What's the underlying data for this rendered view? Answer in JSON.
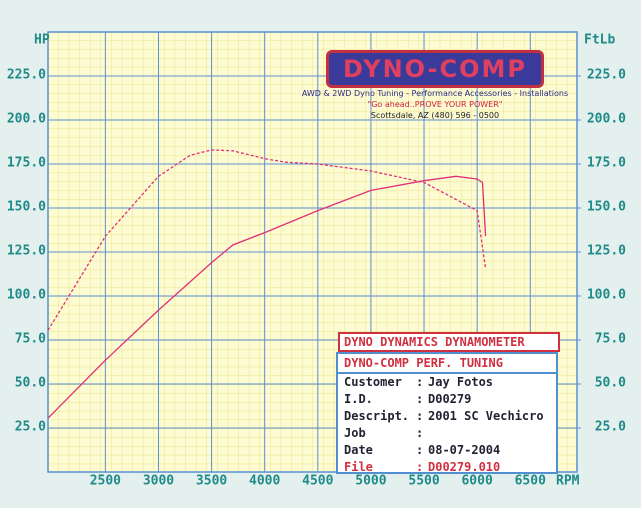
{
  "chart_data": {
    "type": "line",
    "y_label": "HP",
    "y2_label": "FtLb",
    "x_label": "RPM",
    "xlim": [
      1960,
      6940
    ],
    "xticks": [
      2500,
      3000,
      3500,
      4000,
      4500,
      5000,
      5500,
      6000,
      6500
    ],
    "ylim": [
      0,
      250
    ],
    "yticks": [
      {
        "value": 25,
        "label": "25.0"
      },
      {
        "value": 50,
        "label": "50.0"
      },
      {
        "value": 75,
        "label": "75.0"
      },
      {
        "value": 100,
        "label": "100.0"
      },
      {
        "value": 125,
        "label": "125.0"
      },
      {
        "value": 150,
        "label": "150.0"
      },
      {
        "value": 175,
        "label": "175.0"
      },
      {
        "value": 200,
        "label": "200.0"
      },
      {
        "value": 225,
        "label": "225.0"
      }
    ],
    "y2lim": [
      0,
      250
    ],
    "y2ticks": [
      {
        "value": 25,
        "label": "25.0"
      },
      {
        "value": 50,
        "label": "50.0"
      },
      {
        "value": 75,
        "label": "75.0"
      },
      {
        "value": 100,
        "label": "100.0"
      },
      {
        "value": 125,
        "label": "125.0"
      },
      {
        "value": 150,
        "label": "150.0"
      },
      {
        "value": 175,
        "label": "175.0"
      },
      {
        "value": 200,
        "label": "200.0"
      },
      {
        "value": 225,
        "label": "225.0"
      }
    ],
    "grid": true,
    "series": [
      {
        "color": "#e0307a",
        "dash": false,
        "x": [
          1960,
          2000,
          2500,
          3000,
          3500,
          3700,
          4000,
          4500,
          5000,
          5500,
          5800,
          6000,
          6050,
          6080
        ],
        "values": [
          30.6,
          33,
          63.5,
          92,
          119,
          129,
          136,
          148.5,
          160,
          165.5,
          168,
          166.5,
          164.5,
          134
        ]
      },
      {
        "color": "#e0307a",
        "dash": true,
        "axis": "y2",
        "x": [
          1960,
          2500,
          3000,
          3300,
          3500,
          3700,
          4000,
          4200,
          4500,
          5000,
          5500,
          6000,
          6080
        ],
        "values": [
          80.5,
          134,
          168,
          180,
          183,
          182.5,
          178,
          176,
          175,
          171,
          164.5,
          148.5,
          115.7
        ]
      }
    ]
  },
  "logo": {
    "name": "DYNO-COMP",
    "lines": [
      "AWD & 2WD Dyno Tuning - Performance Accessories - Installations",
      "\"Go ahead..PROVE YOUR POWER\"",
      "Scottsdale, AZ (480) 596 - 0500"
    ]
  },
  "info": {
    "header": "DYNO DYNAMICS DYNAMOMETER",
    "title": "DYNO-COMP PERF. TUNING",
    "rows": [
      {
        "label": "Customer",
        "sep": ":",
        "value": "Jay Fotos"
      },
      {
        "label": "I.D.",
        "sep": ":",
        "value": "D00279"
      },
      {
        "label": "Descript.",
        "sep": ":",
        "value": "2001 SC Vechicro"
      },
      {
        "label": "Job",
        "sep": ":"
      },
      {
        "label": "Date",
        "sep": ":",
        "value": "08-07-2004"
      },
      {
        "label": "File",
        "sep": ":",
        "value": "D00279.010"
      }
    ]
  }
}
